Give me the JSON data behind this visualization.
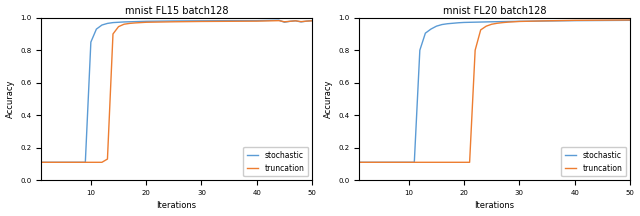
{
  "plot1": {
    "title": "mnist FL15 batch128",
    "stochastic_x": [
      1,
      2,
      3,
      4,
      5,
      6,
      7,
      8,
      9,
      10,
      11,
      12,
      13,
      14,
      15,
      16,
      17,
      18,
      19,
      20,
      25,
      30,
      35,
      40,
      44,
      45,
      46,
      47,
      48,
      49,
      50
    ],
    "stochastic_y": [
      0.11,
      0.11,
      0.11,
      0.11,
      0.11,
      0.11,
      0.11,
      0.11,
      0.11,
      0.85,
      0.93,
      0.955,
      0.965,
      0.97,
      0.972,
      0.974,
      0.975,
      0.976,
      0.977,
      0.978,
      0.98,
      0.981,
      0.982,
      0.982,
      0.985,
      0.972,
      0.978,
      0.981,
      0.974,
      0.979,
      0.982
    ],
    "truncation_x": [
      1,
      2,
      3,
      4,
      5,
      6,
      7,
      8,
      9,
      10,
      11,
      12,
      13,
      14,
      15,
      16,
      17,
      18,
      19,
      20,
      25,
      30,
      35,
      40,
      44,
      45,
      46,
      47,
      48,
      49,
      50
    ],
    "truncation_y": [
      0.11,
      0.11,
      0.11,
      0.11,
      0.11,
      0.11,
      0.11,
      0.11,
      0.11,
      0.11,
      0.11,
      0.11,
      0.13,
      0.9,
      0.945,
      0.96,
      0.965,
      0.968,
      0.97,
      0.972,
      0.975,
      0.977,
      0.978,
      0.979,
      0.982,
      0.975,
      0.978,
      0.981,
      0.976,
      0.979,
      0.981
    ],
    "xlabel": "Iterations",
    "ylabel": "Accuracy",
    "xlim": [
      1,
      50
    ],
    "ylim": [
      0.0,
      1.0
    ],
    "xticks": [
      10,
      20,
      30,
      40,
      50
    ]
  },
  "plot2": {
    "title": "mnist FL20 batch128",
    "stochastic_x": [
      1,
      2,
      3,
      4,
      5,
      6,
      7,
      8,
      9,
      10,
      11,
      12,
      13,
      14,
      15,
      16,
      17,
      18,
      19,
      20,
      25,
      30,
      35,
      40,
      45,
      50
    ],
    "stochastic_y": [
      0.11,
      0.11,
      0.11,
      0.11,
      0.11,
      0.11,
      0.11,
      0.11,
      0.11,
      0.11,
      0.11,
      0.8,
      0.905,
      0.93,
      0.948,
      0.958,
      0.963,
      0.966,
      0.969,
      0.971,
      0.975,
      0.978,
      0.98,
      0.982,
      0.983,
      0.984
    ],
    "truncation_x": [
      1,
      2,
      3,
      4,
      5,
      6,
      7,
      8,
      9,
      10,
      11,
      12,
      13,
      14,
      15,
      16,
      17,
      18,
      19,
      20,
      21,
      22,
      23,
      24,
      25,
      26,
      27,
      28,
      30,
      35,
      40,
      45,
      50
    ],
    "truncation_y": [
      0.11,
      0.11,
      0.11,
      0.11,
      0.11,
      0.11,
      0.11,
      0.11,
      0.11,
      0.11,
      0.11,
      0.11,
      0.11,
      0.11,
      0.11,
      0.11,
      0.11,
      0.11,
      0.11,
      0.11,
      0.11,
      0.8,
      0.925,
      0.948,
      0.96,
      0.966,
      0.97,
      0.973,
      0.977,
      0.981,
      0.984,
      0.985,
      0.986
    ],
    "xlabel": "Iterations",
    "ylabel": "Accuracy",
    "xlim": [
      1,
      50
    ],
    "ylim": [
      0.0,
      1.0
    ],
    "xticks": [
      10,
      20,
      30,
      40,
      50
    ]
  },
  "stochastic_color": "#5b9bd5",
  "truncation_color": "#ed7d31",
  "legend_labels": [
    "stochastic",
    "truncation"
  ],
  "title_fontsize": 7,
  "label_fontsize": 6,
  "tick_fontsize": 5,
  "legend_fontsize": 5.5,
  "linewidth": 1.0
}
